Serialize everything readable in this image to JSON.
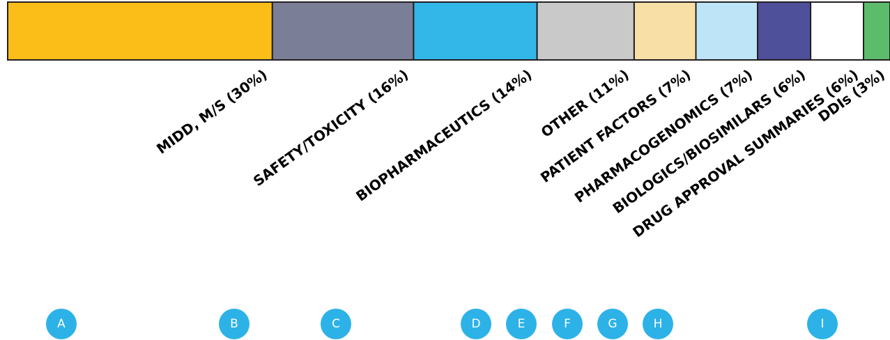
{
  "chart_data": {
    "type": "bar",
    "orientation": "horizontal-stacked",
    "unit": "%",
    "segments": [
      {
        "label": "MIDD, M/S (30%)",
        "value": 30,
        "color": "#FBBD18"
      },
      {
        "label": "SAFETY/TOXICITY (16%)",
        "value": 16,
        "color": "#7A7E96"
      },
      {
        "label": "BIOPHARMACEUTICS (14%)",
        "value": 14,
        "color": "#33B7E8"
      },
      {
        "label": "OTHER (11%)",
        "value": 11,
        "color": "#C8C9C8"
      },
      {
        "label": "PATIENT FACTORS (7%)",
        "value": 7,
        "color": "#F8DFA6"
      },
      {
        "label": "PHARMACOGENOMICS (7%)",
        "value": 7,
        "color": "#BDE4F7"
      },
      {
        "label": "BIOLOGICS/BIOSIMILARS (6%)",
        "value": 6,
        "color": "#4E509A"
      },
      {
        "label": "DRUG APPROVAL SUMMARIES (6%)",
        "value": 6,
        "color": "#FFFFFF"
      },
      {
        "label": "DDIs (3%)",
        "value": 3,
        "color": "#5DBB6C"
      }
    ]
  },
  "badges": {
    "color": "#2DB2E8",
    "letters": [
      "A",
      "B",
      "C",
      "D",
      "E",
      "F",
      "G",
      "H",
      "I"
    ]
  }
}
